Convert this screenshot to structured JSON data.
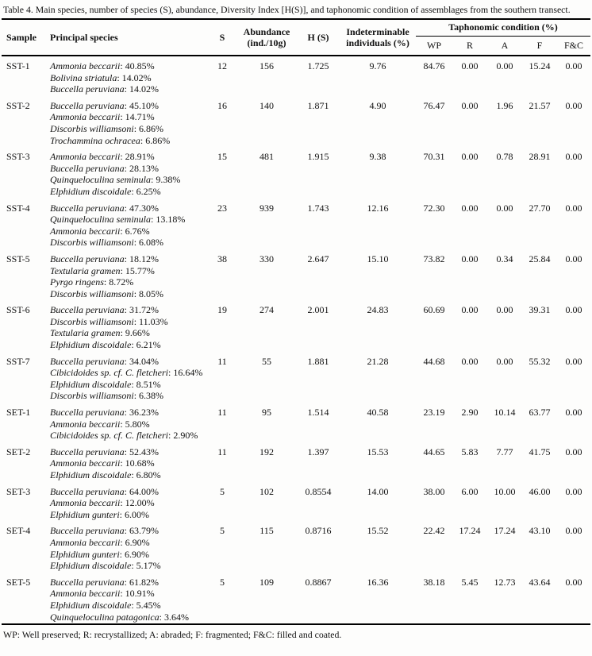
{
  "title": "Table 4. Main species, number of species (S), abundance, Diversity Index [H(S)], and taphonomic condition of assemblages from the southern transect.",
  "header": {
    "sample": "Sample",
    "principal_species": "Principal species",
    "s": "S",
    "abundance": "Abundance",
    "abundance_sub": "(ind./10g)",
    "h": "H (S)",
    "indeterminable": "Indeterminable",
    "indeterminable_sub": "individuals (%)",
    "taphonomic": "Taphonomic condition (%)",
    "sub": [
      "WP",
      "R",
      "A",
      "F",
      "F&C"
    ]
  },
  "rows": [
    {
      "sample": "SST-1",
      "species": [
        {
          "n": "Ammonia beccarii",
          "v": "40.85%"
        },
        {
          "n": "Bolivina striatula",
          "v": "14.02%"
        },
        {
          "n": "Buccella peruviana",
          "v": "14.02%"
        }
      ],
      "s": "12",
      "abundance": "156",
      "h": "1.725",
      "ind": "9.76",
      "wp": "84.76",
      "r": "0.00",
      "a": "0.00",
      "f": "15.24",
      "fc": "0.00"
    },
    {
      "sample": "SST-2",
      "species": [
        {
          "n": "Buccella peruviana",
          "v": "45.10%"
        },
        {
          "n": "Ammonia beccarii",
          "v": "14.71%"
        },
        {
          "n": "Discorbis williamsoni",
          "v": "6.86%"
        },
        {
          "n": "Trochammina ochracea",
          "v": "6.86%"
        }
      ],
      "s": "16",
      "abundance": "140",
      "h": "1.871",
      "ind": "4.90",
      "wp": "76.47",
      "r": "0.00",
      "a": "1.96",
      "f": "21.57",
      "fc": "0.00"
    },
    {
      "sample": "SST-3",
      "species": [
        {
          "n": "Ammonia beccarii",
          "v": "28.91%"
        },
        {
          "n": "Buccella peruviana",
          "v": "28.13%"
        },
        {
          "n": "Quinqueloculina seminula",
          "v": "9.38%"
        },
        {
          "n": "Elphidium discoidale",
          "v": "6.25%"
        }
      ],
      "s": "15",
      "abundance": "481",
      "h": "1.915",
      "ind": "9.38",
      "wp": "70.31",
      "r": "0.00",
      "a": "0.78",
      "f": "28.91",
      "fc": "0.00"
    },
    {
      "sample": "SST-4",
      "species": [
        {
          "n": "Buccella peruviana",
          "v": "47.30%"
        },
        {
          "n": "Quinqueloculina seminula",
          "v": "13.18%"
        },
        {
          "n": "Ammonia beccarii",
          "v": "6.76%"
        },
        {
          "n": "Discorbis williamsoni",
          "v": "6.08%"
        }
      ],
      "s": "23",
      "abundance": "939",
      "h": "1.743",
      "ind": "12.16",
      "wp": "72.30",
      "r": "0.00",
      "a": "0.00",
      "f": "27.70",
      "fc": "0.00"
    },
    {
      "sample": "SST-5",
      "species": [
        {
          "n": "Buccella peruviana",
          "v": "18.12%"
        },
        {
          "n": "Textularia gramen",
          "v": "15.77%"
        },
        {
          "n": "Pyrgo ringens",
          "v": "8.72%"
        },
        {
          "n": "Discorbis williamsoni",
          "v": "8.05%"
        }
      ],
      "s": "38",
      "abundance": "330",
      "h": "2.647",
      "ind": "15.10",
      "wp": "73.82",
      "r": "0.00",
      "a": "0.34",
      "f": "25.84",
      "fc": "0.00"
    },
    {
      "sample": "SST-6",
      "species": [
        {
          "n": "Buccella peruviana",
          "v": "31.72%"
        },
        {
          "n": "Discorbis williamsoni",
          "v": "11.03%"
        },
        {
          "n": "Textularia gramen",
          "v": "9.66%"
        },
        {
          "n": "Elphidium discoidale",
          "v": "6.21%"
        }
      ],
      "s": "19",
      "abundance": "274",
      "h": "2.001",
      "ind": "24.83",
      "wp": "60.69",
      "r": "0.00",
      "a": "0.00",
      "f": "39.31",
      "fc": "0.00"
    },
    {
      "sample": "SST-7",
      "species": [
        {
          "n": "Buccella peruviana",
          "v": "34.04%"
        },
        {
          "n": "Cibicidoides sp. cf. C. fletcheri",
          "v": "16.64%"
        },
        {
          "n": "Elphidium discoidale",
          "v": "8.51%"
        },
        {
          "n": "Discorbis williamsoni",
          "v": "6.38%"
        }
      ],
      "s": "11",
      "abundance": "55",
      "h": "1.881",
      "ind": "21.28",
      "wp": "44.68",
      "r": "0.00",
      "a": "0.00",
      "f": "55.32",
      "fc": "0.00"
    },
    {
      "sample": "SET-1",
      "species": [
        {
          "n": "Buccella peruviana",
          "v": "36.23%"
        },
        {
          "n": "Ammonia beccarii",
          "v": "5.80%"
        },
        {
          "n": "Cibicidoides sp. cf. C. fletcheri",
          "v": "2.90%"
        }
      ],
      "s": "11",
      "abundance": "95",
      "h": "1.514",
      "ind": "40.58",
      "wp": "23.19",
      "r": "2.90",
      "a": "10.14",
      "f": "63.77",
      "fc": "0.00"
    },
    {
      "sample": "SET-2",
      "species": [
        {
          "n": "Buccella peruviana",
          "v": "52.43%"
        },
        {
          "n": "Ammonia beccarii",
          "v": "10.68%"
        },
        {
          "n": "Elphidium discoidale",
          "v": "6.80%"
        }
      ],
      "s": "11",
      "abundance": "192",
      "h": "1.397",
      "ind": "15.53",
      "wp": "44.65",
      "r": "5.83",
      "a": "7.77",
      "f": "41.75",
      "fc": "0.00"
    },
    {
      "sample": "SET-3",
      "species": [
        {
          "n": "Buccella peruviana",
          "v": "64.00%"
        },
        {
          "n": "Ammonia beccarii",
          "v": "12.00%"
        },
        {
          "n": "Elphidium gunteri",
          "v": "6.00%"
        }
      ],
      "s": "5",
      "abundance": "102",
      "h": "0.8554",
      "ind": "14.00",
      "wp": "38.00",
      "r": "6.00",
      "a": "10.00",
      "f": "46.00",
      "fc": "0.00"
    },
    {
      "sample": "SET-4",
      "species": [
        {
          "n": "Buccella peruviana",
          "v": "63.79%"
        },
        {
          "n": "Ammonia beccarii",
          "v": "6.90%"
        },
        {
          "n": "Elphidium gunteri",
          "v": "6.90%"
        },
        {
          "n": "Elphidium discoidale",
          "v": "5.17%"
        }
      ],
      "s": "5",
      "abundance": "115",
      "h": "0.8716",
      "ind": "15.52",
      "wp": "22.42",
      "r": "17.24",
      "a": "17.24",
      "f": "43.10",
      "fc": "0.00"
    },
    {
      "sample": "SET-5",
      "species": [
        {
          "n": "Buccella peruviana",
          "v": "61.82%"
        },
        {
          "n": "Ammonia beccarii",
          "v": "10.91%"
        },
        {
          "n": "Elphidium discoidale",
          "v": "5.45%"
        },
        {
          "n": "Quinqueloculina patagonica",
          "v": "3.64%"
        }
      ],
      "s": "5",
      "abundance": "109",
      "h": "0.8867",
      "ind": "16.36",
      "wp": "38.18",
      "r": "5.45",
      "a": "12.73",
      "f": "43.64",
      "fc": "0.00"
    }
  ],
  "footnote": "WP: Well preserved; R: recrystallized; A: abraded; F: fragmented; F&C: filled and coated."
}
